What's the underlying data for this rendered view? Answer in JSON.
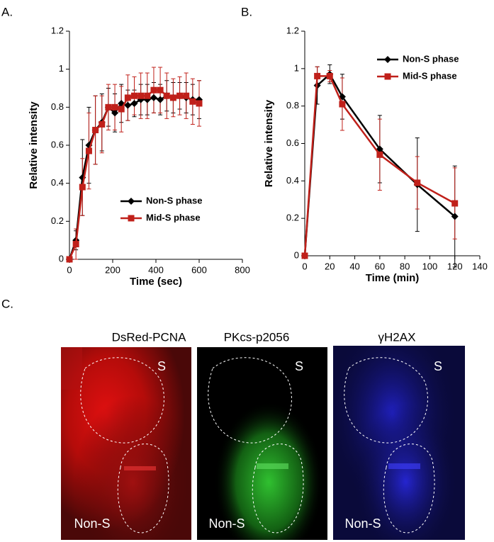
{
  "chart_data": [
    {
      "type": "line",
      "panel_label": "A.",
      "xlabel": "Time (sec)",
      "ylabel": "Relative intensity",
      "xlim": [
        0,
        800
      ],
      "xticks": [
        0,
        200,
        400,
        600,
        800
      ],
      "ylim": [
        0,
        1.2
      ],
      "yticks": [
        0,
        0.2,
        0.4,
        0.6,
        0.8,
        1,
        1.2
      ],
      "legend": "lower center",
      "x": [
        0,
        30,
        60,
        90,
        120,
        150,
        180,
        210,
        240,
        270,
        300,
        330,
        360,
        390,
        420,
        450,
        480,
        510,
        540,
        570,
        600
      ],
      "series": [
        {
          "name": "Non-S phase",
          "color": "#000000",
          "marker": "diamond",
          "values": [
            0,
            0.1,
            0.43,
            0.6,
            0.68,
            0.72,
            0.8,
            0.77,
            0.82,
            0.81,
            0.82,
            0.84,
            0.84,
            0.85,
            0.84,
            0.86,
            0.85,
            0.86,
            0.85,
            0.84,
            0.84
          ],
          "errors": [
            0,
            0.05,
            0.2,
            0.2,
            0.18,
            0.15,
            0.1,
            0.1,
            0.1,
            0.08,
            0.07,
            0.08,
            0.08,
            0.08,
            0.08,
            0.08,
            0.08,
            0.07,
            0.08,
            0.08,
            0.1
          ]
        },
        {
          "name": "Mid-S phase",
          "color": "#c0201a",
          "marker": "square",
          "values": [
            0,
            0.08,
            0.38,
            0.57,
            0.68,
            0.71,
            0.8,
            0.8,
            0.79,
            0.85,
            0.86,
            0.86,
            0.86,
            0.89,
            0.89,
            0.86,
            0.85,
            0.86,
            0.86,
            0.83,
            0.82
          ],
          "errors": [
            0,
            0.08,
            0.15,
            0.2,
            0.18,
            0.15,
            0.12,
            0.12,
            0.12,
            0.12,
            0.1,
            0.12,
            0.12,
            0.12,
            0.12,
            0.12,
            0.1,
            0.1,
            0.12,
            0.12,
            0.12
          ]
        }
      ]
    },
    {
      "type": "line",
      "panel_label": "B.",
      "xlabel": "Time (min)",
      "ylabel": "Relative intensity",
      "xlim": [
        0,
        140
      ],
      "xticks": [
        0,
        20,
        40,
        60,
        80,
        100,
        120,
        140
      ],
      "ylim": [
        0,
        1.2
      ],
      "yticks": [
        0,
        0.2,
        0.4,
        0.6,
        0.8,
        1,
        1.2
      ],
      "legend": "upper right",
      "x": [
        0,
        10,
        20,
        30,
        60,
        90,
        120
      ],
      "series": [
        {
          "name": "Non-S phase",
          "color": "#000000",
          "marker": "diamond",
          "values": [
            0,
            0.91,
            0.97,
            0.85,
            0.57,
            0.38,
            0.21
          ],
          "errors": [
            0,
            0.1,
            0.05,
            0.12,
            0.18,
            0.25,
            0.27
          ]
        },
        {
          "name": "Mid-S phase",
          "color": "#c0201a",
          "marker": "square",
          "values": [
            0,
            0.96,
            0.96,
            0.81,
            0.54,
            0.39,
            0.28
          ],
          "errors": [
            0,
            0.05,
            0.03,
            0.14,
            0.19,
            0.14,
            0.19
          ]
        }
      ]
    }
  ],
  "figure": {
    "panel_label": "C.",
    "images": [
      {
        "title": "DsRed-PCNA",
        "labels": [
          "S",
          "Non-S"
        ]
      },
      {
        "title": "PKcs-p2056",
        "labels": [
          "S",
          "Non-S"
        ]
      },
      {
        "title": "γH2AX",
        "labels": [
          "S",
          "Non-S"
        ]
      }
    ]
  }
}
